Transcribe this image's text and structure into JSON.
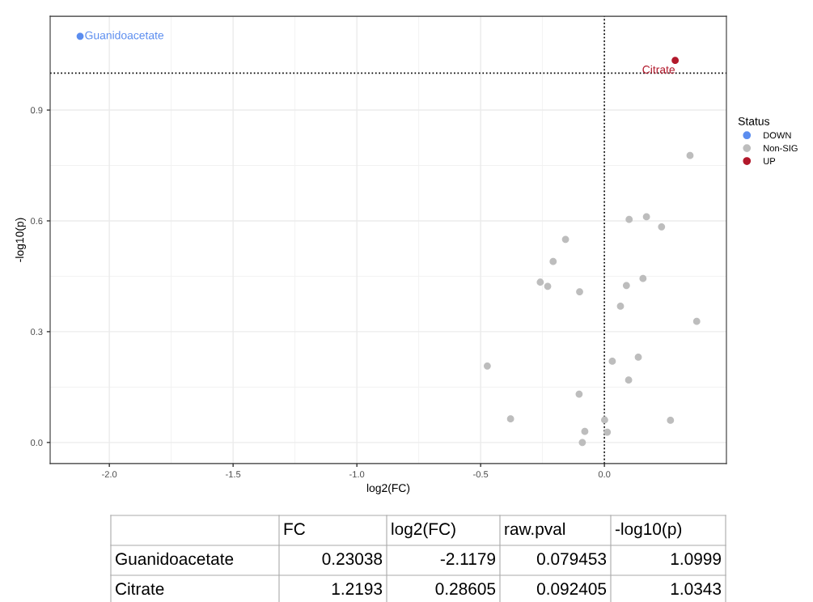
{
  "chart_data": {
    "type": "scatter",
    "xlabel": "log2(FC)",
    "ylabel": "-log10(p)",
    "legend_title": "Status",
    "legend": "right",
    "xlim": [
      -2.239,
      0.493
    ],
    "ylim": [
      -0.057,
      1.154
    ],
    "xticks": [
      {
        "value": -2.0,
        "label": "-2.0"
      },
      {
        "value": -1.5,
        "label": "-1.5"
      },
      {
        "value": -1.0,
        "label": "-1.0"
      },
      {
        "value": -0.5,
        "label": "-0.5"
      },
      {
        "value": 0.0,
        "label": "0.0"
      }
    ],
    "yticks": [
      {
        "value": 0.0,
        "label": "0.0"
      },
      {
        "value": 0.3,
        "label": "0.3"
      },
      {
        "value": 0.6,
        "label": "0.6"
      },
      {
        "value": 0.9,
        "label": "0.9"
      }
    ],
    "grid": true,
    "marker": "circle",
    "series": [
      {
        "name": "DOWN",
        "color": "#5b8def",
        "x": [
          -2.1179
        ],
        "values": [
          1.0999
        ]
      },
      {
        "name": "Non-SIG",
        "color": "#bdbdbd",
        "x": [
          0.346,
          0.1,
          0.17,
          0.231,
          -0.157,
          -0.207,
          -0.259,
          -0.229,
          -0.1,
          0.089,
          0.156,
          0.065,
          0.373,
          -0.473,
          0.032,
          0.137,
          0.098,
          -0.102,
          -0.379,
          0.001,
          0.267,
          -0.079,
          0.012,
          -0.089
        ],
        "values": [
          0.777,
          0.604,
          0.611,
          0.584,
          0.55,
          0.49,
          0.434,
          0.423,
          0.408,
          0.425,
          0.444,
          0.369,
          0.328,
          0.207,
          0.22,
          0.231,
          0.169,
          0.131,
          0.064,
          0.061,
          0.06,
          0.03,
          0.028,
          0.0
        ]
      },
      {
        "name": "UP",
        "color": "#b2182b",
        "x": [
          0.28605
        ],
        "values": [
          1.0343
        ]
      }
    ],
    "ref_lines": [
      {
        "axis": "y",
        "value": 1.0,
        "line_style": "dotted",
        "color": "#000000"
      },
      {
        "axis": "x",
        "value": 0.0,
        "line_style": "dotted",
        "color": "#000000"
      }
    ],
    "annotations": [
      {
        "text": "Guanidoacetate",
        "x": -2.1179,
        "y": 1.0999
      },
      {
        "text": "Citrate",
        "x": 0.28605,
        "y": 1.0343
      },
      "FC",
      "log2(FC)",
      "raw.pval",
      "-log10(p)",
      "Guanidoacetate",
      "0.23038",
      "-2.1179",
      "0.079453",
      "1.0999",
      "Citrate",
      "1.2193",
      "0.28605",
      "0.092405",
      "1.0343"
    ]
  }
}
